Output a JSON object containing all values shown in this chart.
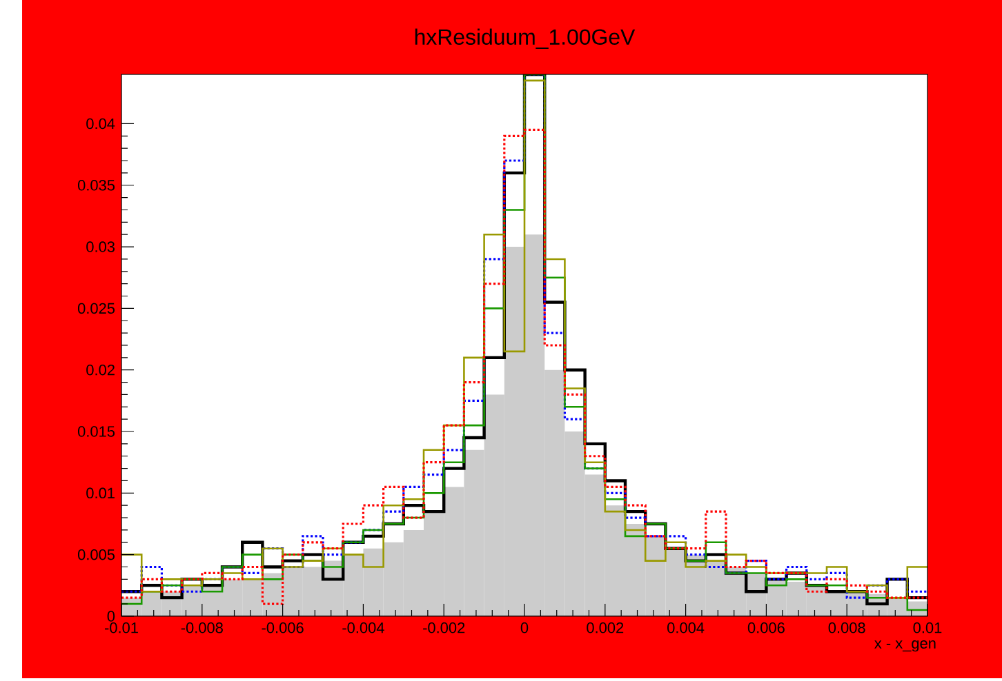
{
  "chart_data": {
    "type": "histogram",
    "title": "hxResiduum_1.00GeV",
    "xlabel": "x - x_gen",
    "bins": [
      -0.01,
      -0.0095,
      -0.009,
      -0.0085,
      -0.008,
      -0.0075,
      -0.007,
      -0.0065,
      -0.006,
      -0.0055,
      -0.005,
      -0.0045,
      -0.004,
      -0.0035,
      -0.003,
      -0.0025,
      -0.002,
      -0.0015,
      -0.001,
      -0.0005,
      0,
      0.0005,
      0.001,
      0.0015,
      0.002,
      0.0025,
      0.003,
      0.0035,
      0.004,
      0.0045,
      0.005,
      0.0055,
      0.006,
      0.0065,
      0.007,
      0.0075,
      0.008,
      0.0085,
      0.009,
      0.0095,
      0.01
    ],
    "series": [
      {
        "color": "#000000",
        "line_style": "solid",
        "values": [
          0.002,
          0.0025,
          0.0015,
          0.003,
          0.0025,
          0.004,
          0.006,
          0.004,
          0.0045,
          0.005,
          0.003,
          0.006,
          0.0065,
          0.0075,
          0.009,
          0.0085,
          0.012,
          0.0145,
          0.021,
          0.036,
          0.044,
          0.0255,
          0.02,
          0.014,
          0.011,
          0.0085,
          0.0075,
          0.0055,
          0.0045,
          0.005,
          0.0035,
          0.002,
          0.003,
          0.0035,
          0.0025,
          0.002,
          0.002,
          0.001,
          0.003,
          0.0015
        ]
      },
      {
        "color": "#0000ff",
        "line_style": "dotted",
        "values": [
          0.002,
          0.004,
          0.0025,
          0.002,
          0.003,
          0.004,
          0.0035,
          0.0055,
          0.004,
          0.0065,
          0.005,
          0.006,
          0.007,
          0.0085,
          0.0105,
          0.0115,
          0.0135,
          0.0175,
          0.029,
          0.037,
          0.044,
          0.023,
          0.016,
          0.012,
          0.01,
          0.008,
          0.0065,
          0.0065,
          0.005,
          0.004,
          0.0035,
          0.0045,
          0.003,
          0.004,
          0.003,
          0.0035,
          0.0015,
          0.0025,
          0.003,
          0.002
        ]
      },
      {
        "color": "#1a9900",
        "line_style": "solid",
        "values": [
          0.001,
          0.002,
          0.0025,
          0.003,
          0.002,
          0.004,
          0.005,
          0.003,
          0.005,
          0.0045,
          0.004,
          0.006,
          0.007,
          0.0075,
          0.008,
          0.01,
          0.0125,
          0.0155,
          0.025,
          0.033,
          0.044,
          0.0275,
          0.017,
          0.012,
          0.0095,
          0.0065,
          0.0075,
          0.0055,
          0.0045,
          0.006,
          0.0035,
          0.0035,
          0.0025,
          0.003,
          0.0025,
          0.0025,
          0.002,
          0.0015,
          0.0015,
          0.0005
        ]
      },
      {
        "color": "#999900",
        "line_style": "solid",
        "values": [
          0.005,
          0.002,
          0.003,
          0.0025,
          0.003,
          0.0035,
          0.003,
          0.0055,
          0.004,
          0.0045,
          0.0055,
          0.005,
          0.004,
          0.009,
          0.0095,
          0.0135,
          0.0155,
          0.021,
          0.031,
          0.0215,
          0.0435,
          0.029,
          0.0185,
          0.0125,
          0.0085,
          0.007,
          0.0045,
          0.006,
          0.004,
          0.0045,
          0.005,
          0.004,
          0.0035,
          0.0035,
          0.0035,
          0.004,
          0.002,
          0.0025,
          0.0015,
          0.004
        ]
      },
      {
        "color": "#ff0000",
        "line_style": "dotted",
        "values": [
          0.0015,
          0.003,
          0.002,
          0.003,
          0.0035,
          0.003,
          0.004,
          0.001,
          0.005,
          0.006,
          0.0055,
          0.0075,
          0.009,
          0.0105,
          0.008,
          0.0125,
          0.0155,
          0.019,
          0.027,
          0.039,
          0.0395,
          0.022,
          0.018,
          0.013,
          0.0105,
          0.009,
          0.0065,
          0.0055,
          0.0055,
          0.0085,
          0.004,
          0.0045,
          0.0035,
          0.0035,
          0.002,
          0.003,
          0.0025,
          0.002,
          0.0015,
          0.0015
        ]
      },
      {
        "color": "#cccccc",
        "values": [
          0.0015,
          0.002,
          0.002,
          0.0025,
          0.0025,
          0.003,
          0.003,
          0.0035,
          0.004,
          0.004,
          0.0045,
          0.005,
          0.0055,
          0.006,
          0.007,
          0.0085,
          0.0105,
          0.0135,
          0.018,
          0.03,
          0.031,
          0.02,
          0.015,
          0.0115,
          0.009,
          0.0075,
          0.0065,
          0.0055,
          0.005,
          0.0045,
          0.004,
          0.0035,
          0.003,
          0.0028,
          0.0025,
          0.002,
          0.002,
          0.0018,
          0.0015,
          0.0012
        ]
      }
    ],
    "xlim": [
      -0.01,
      0.01
    ],
    "ylim": [
      0,
      0.044
    ],
    "xticks": [
      -0.01,
      -0.008,
      -0.006,
      -0.004,
      -0.002,
      0,
      0.002,
      0.004,
      0.006,
      0.008,
      0.01
    ],
    "yticks": [
      0,
      0.005,
      0.01,
      0.015,
      0.02,
      0.025,
      0.03,
      0.035,
      0.04
    ],
    "grid": false
  }
}
